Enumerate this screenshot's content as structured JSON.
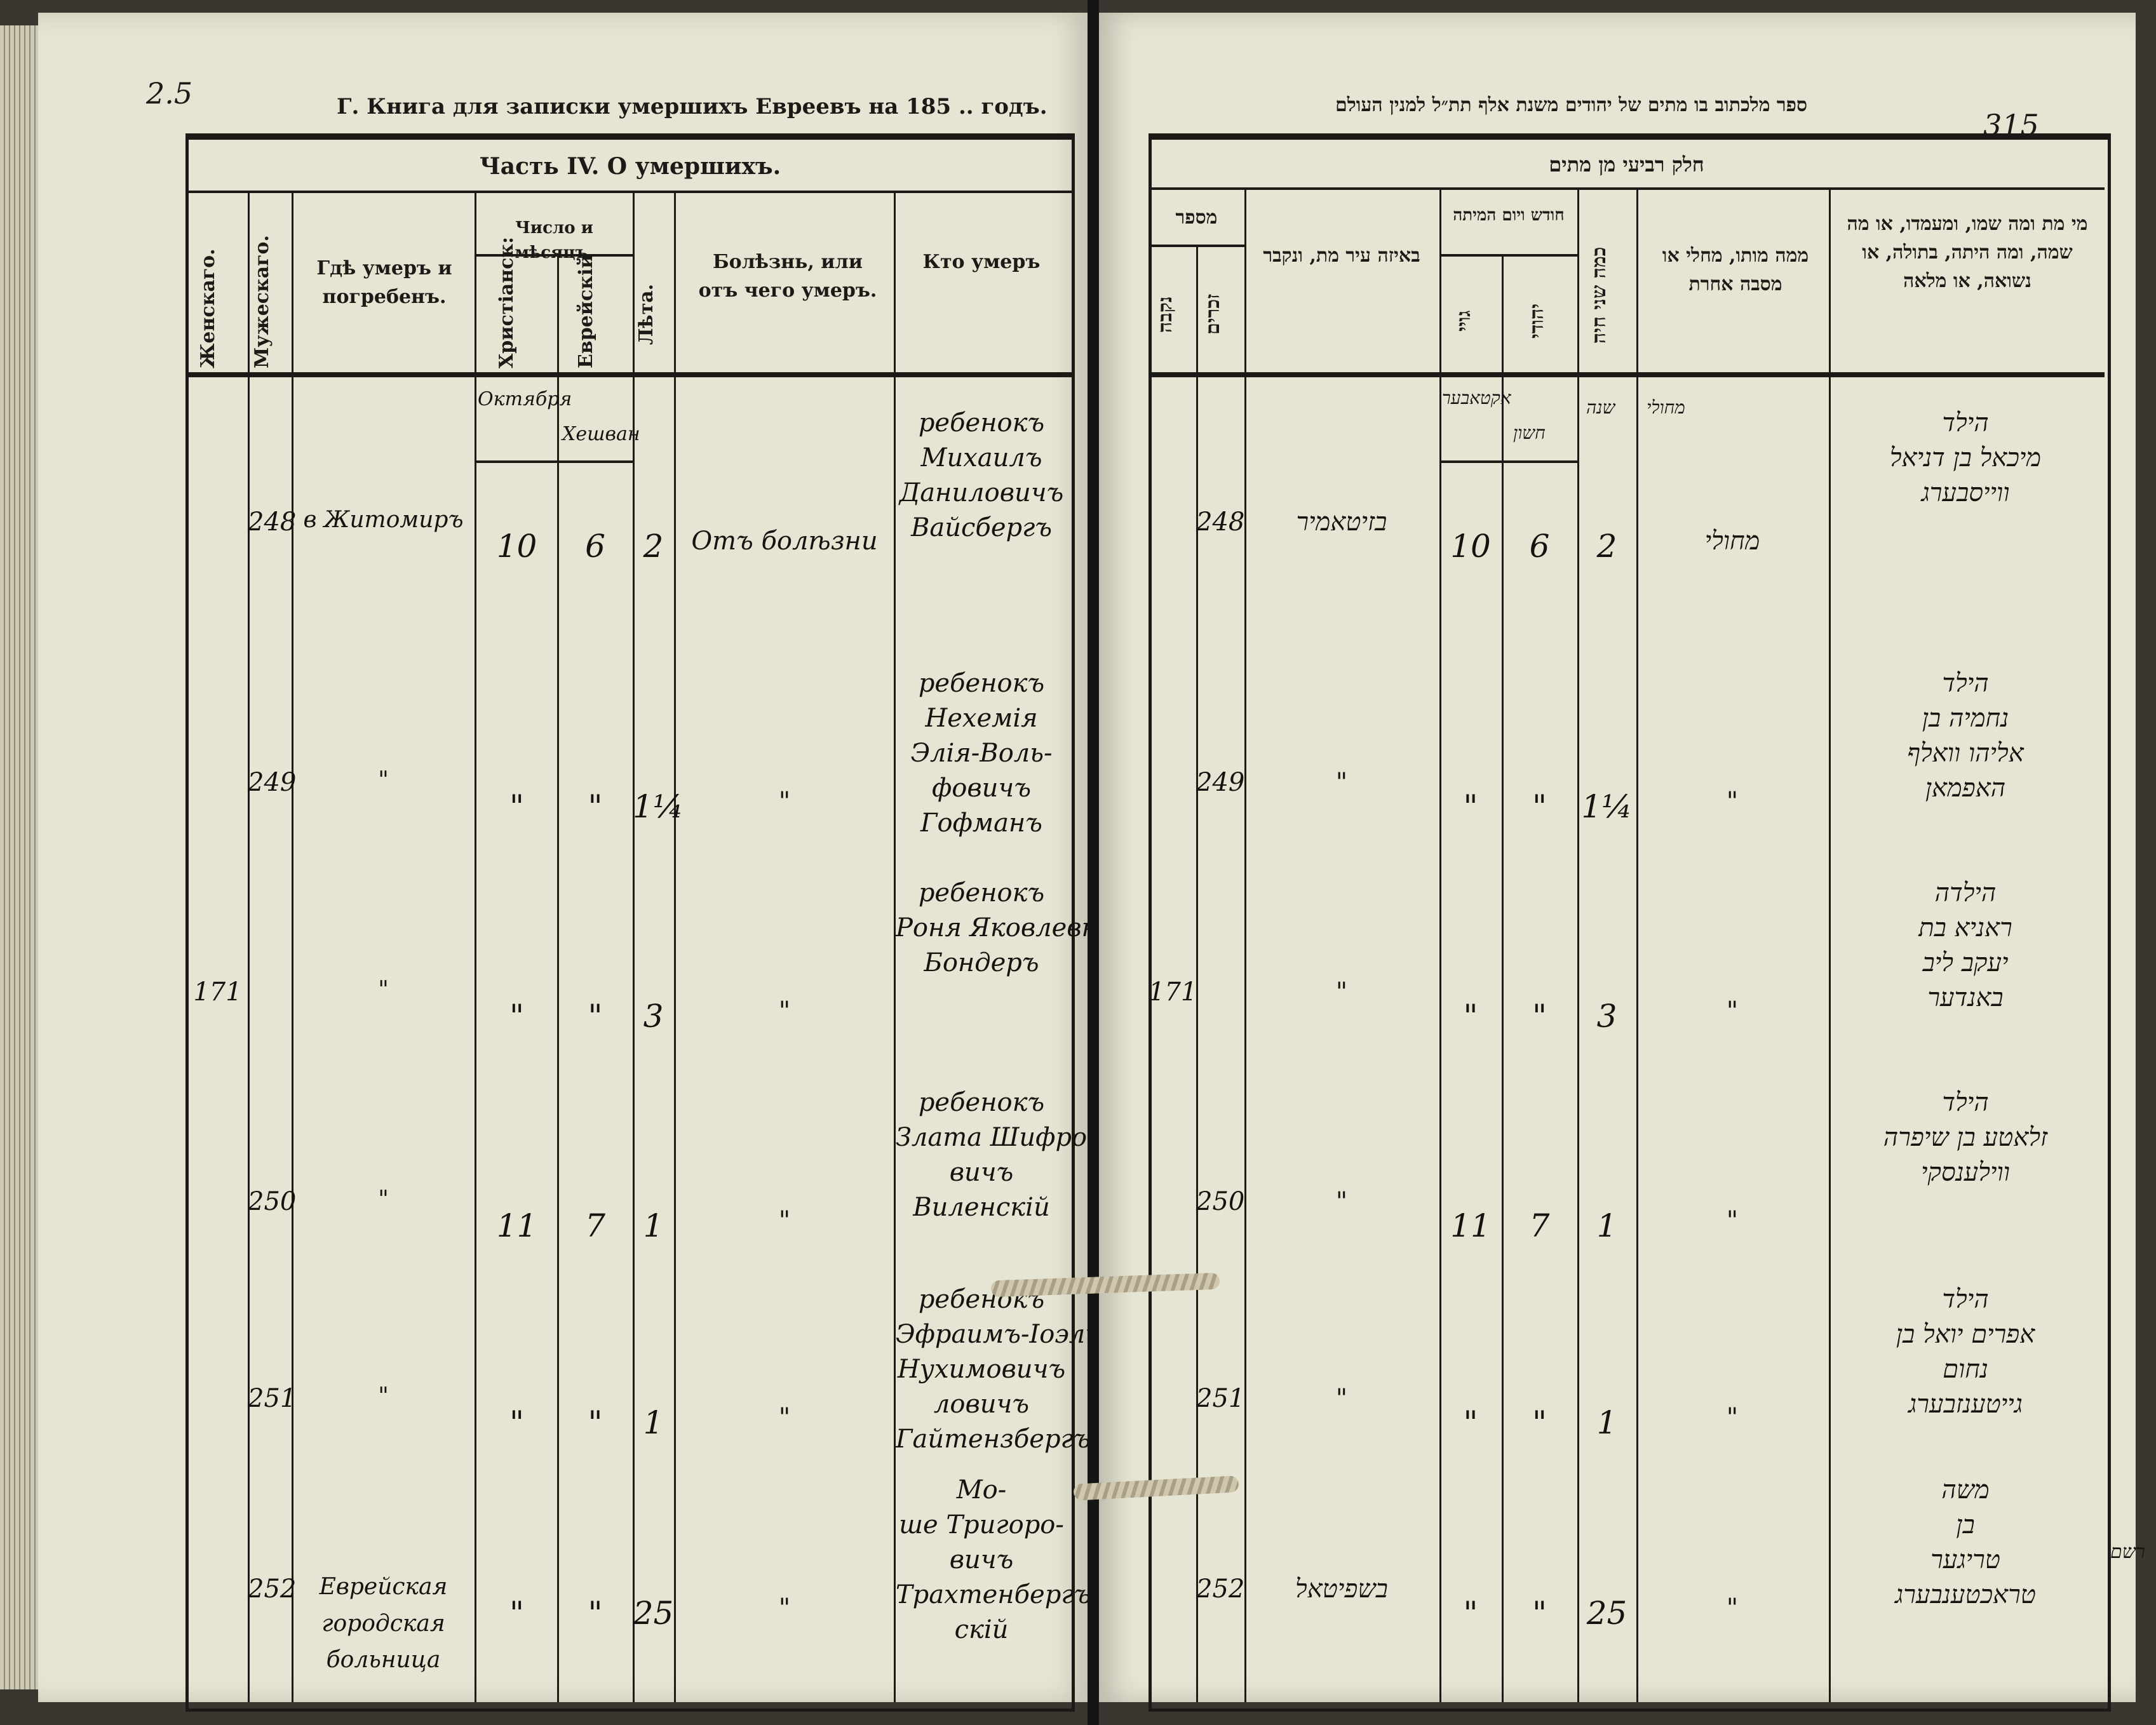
{
  "left_page": {
    "page_mark": "2.5",
    "running_title": "Г. Книга для записки умершихъ Евреевъ на 185 .. годъ.",
    "table_title": "Часть IV. О умершихъ.",
    "columns": {
      "female": "Женскаго.",
      "male": "Мужескаго.",
      "place": "Гдѣ умеръ и погребенъ.",
      "date_group": "Число и мѣсяцъ.",
      "christian": "Христіанск:",
      "jewish": "Еврейскій",
      "age": "Лѣта.",
      "cause": "Болѣзнь, или отъ чего умеръ.",
      "who": "Кто умеръ"
    },
    "month_header": {
      "christian": "Октября",
      "jewish": "Хешван"
    },
    "rows": [
      {
        "female": "",
        "male": "248",
        "place": "в Житомиръ",
        "christian_day": "10",
        "jewish_day": "6",
        "age": "2",
        "cause": "Отъ болѣзни",
        "who": [
          "ребенокъ",
          "Михаилъ",
          "Даниловичъ",
          "Вайсбергъ"
        ]
      },
      {
        "female": "",
        "male": "249",
        "place": "\"",
        "christian_day": "\"",
        "jewish_day": "\"",
        "age": "1¼",
        "cause": "\"",
        "who": [
          "ребенокъ",
          "Нехемія",
          "Элія-Воль-",
          "фовичъ",
          "Гофманъ"
        ]
      },
      {
        "female": "171",
        "male": "",
        "place": "\"",
        "christian_day": "\"",
        "jewish_day": "\"",
        "age": "3",
        "cause": "\"",
        "who": [
          "ребенокъ",
          "Роня Яковлевна",
          "Бондеръ"
        ]
      },
      {
        "female": "",
        "male": "250",
        "place": "\"",
        "christian_day": "11",
        "jewish_day": "7",
        "age": "1",
        "cause": "\"",
        "who": [
          "ребенокъ",
          "Злата Шифро-",
          "вичъ",
          "Виленскій"
        ]
      },
      {
        "female": "",
        "male": "251",
        "place": "\"",
        "christian_day": "\"",
        "jewish_day": "\"",
        "age": "1",
        "cause": "\"",
        "who": [
          "ребенокъ",
          "Эфраимъ-Іоэль",
          "Нухимовичъ",
          "ловичъ",
          "Гайтензбергъ"
        ]
      },
      {
        "female": "",
        "male": "252",
        "place": "Еврейская городская больница",
        "christian_day": "\"",
        "jewish_day": "\"",
        "age": "25",
        "cause": "\"",
        "who": [
          "Мо-",
          "ше Тригоро-",
          "вичъ",
          "Трахтенбергъ",
          "скій"
        ]
      }
    ]
  },
  "right_page": {
    "page_number": "315",
    "running_title": "ספר מלכתוב בו מתים של יהודים משנת אלף תת״ל למנין העולם",
    "table_title": "חלק רביעי מן מתים",
    "columns": {
      "number_group": "מספר",
      "female": "נקבה",
      "male": "זכרים",
      "city": "באיזה עיר מת, ונקבר",
      "date_group": "חודש ויום המיתה",
      "gentile": "גויי",
      "jewish": "יהודי",
      "age": "כמה שני חיה",
      "cause": "ממה מותו, מחלי או מסבה אחרת",
      "who": "מי מת ומה שמו, ומעמדו, או מה שמה, ומה היתה, בתולה, או נשואה, או מלאה"
    },
    "month_header": {
      "gentile": "אקטאבער",
      "jewish": "חשון",
      "age": "שנה",
      "cause": "מחולי"
    },
    "rows": [
      {
        "female": "",
        "male": "248",
        "city": "בזיטאמיר",
        "gentile_day": "10",
        "jewish_day": "6",
        "age": "2",
        "cause": "מחולי",
        "who": [
          "הילד",
          "מיכאל בן דניאל",
          "ווייסבערג"
        ]
      },
      {
        "female": "",
        "male": "249",
        "city": "\"",
        "gentile_day": "\"",
        "jewish_day": "\"",
        "age": "1¼",
        "cause": "\"",
        "who": [
          "הילד",
          "נחמיה בן",
          "אליהו וואלף",
          "האפמאן"
        ]
      },
      {
        "female": "171",
        "male": "",
        "city": "\"",
        "gentile_day": "\"",
        "jewish_day": "\"",
        "age": "3",
        "cause": "\"",
        "who": [
          "הילדה",
          "ראניא בת",
          "יעקב ליב",
          "באנדער"
        ]
      },
      {
        "female": "",
        "male": "250",
        "city": "\"",
        "gentile_day": "11",
        "jewish_day": "7",
        "age": "1",
        "cause": "\"",
        "who": [
          "הילד",
          "זלאטע בן שיפרה",
          "ווילענסקי"
        ]
      },
      {
        "female": "",
        "male": "251",
        "city": "\"",
        "gentile_day": "\"",
        "jewish_day": "\"",
        "age": "1",
        "cause": "\"",
        "who": [
          "הילד",
          "אפרים יואל בן",
          "נחום",
          "גייטענזבערג"
        ]
      },
      {
        "female": "",
        "male": "252",
        "city": "בשפיטאל",
        "gentile_day": "\"",
        "jewish_day": "\"",
        "age": "25",
        "cause": "\"",
        "who": [
          "משה",
          "בן",
          "טריגער",
          "טראכטענבערג"
        ]
      }
    ],
    "margin_note": "רשם"
  },
  "colors": {
    "paper": "#e6e4d2",
    "ink": "#1c1a16",
    "background": "#3a3630",
    "twine": "#bfb79c"
  }
}
